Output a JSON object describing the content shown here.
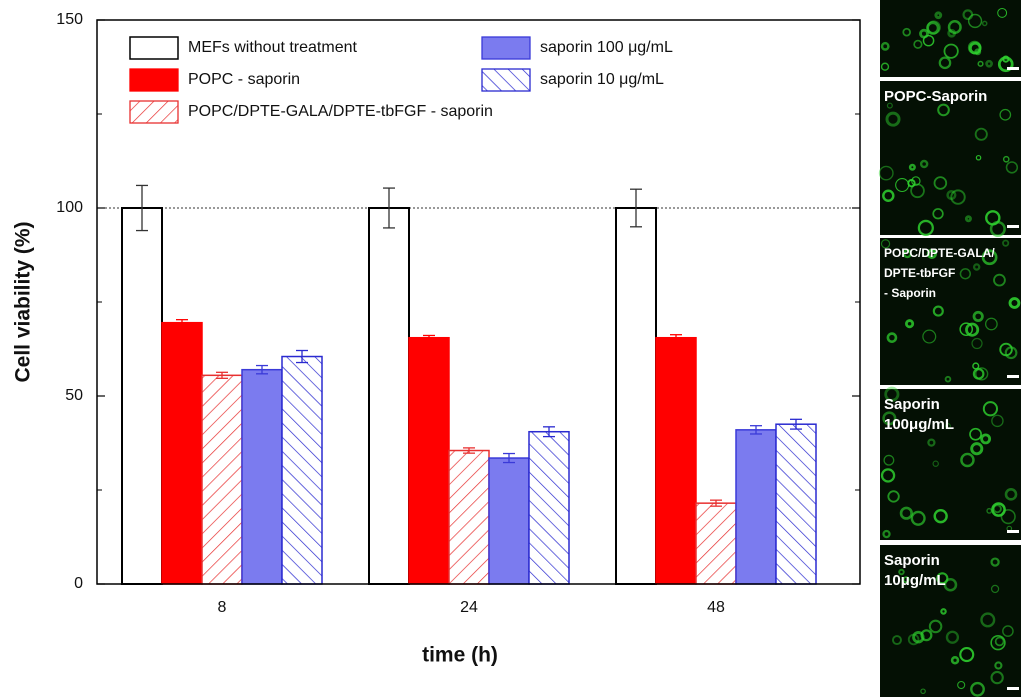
{
  "chart_data": {
    "type": "bar",
    "x_label": "time (h)",
    "y_label": "Cell viability (%)",
    "categories": [
      "8",
      "24",
      "48"
    ],
    "ylim": [
      0,
      150
    ],
    "yticks": [
      0,
      50,
      100,
      150
    ],
    "minor_yticks": [
      25,
      75,
      125
    ],
    "reference_line": 100,
    "series": [
      {
        "name": "MEFs without treatment",
        "color": "#000000",
        "fill": "none",
        "values": [
          100,
          100,
          100
        ],
        "errors": [
          6,
          5.3,
          5
        ]
      },
      {
        "name": "POPC - saporin",
        "color": "#ff0000",
        "fill": "solid",
        "values": [
          69.5,
          65.5,
          65.5
        ],
        "errors": [
          0.8,
          0.6,
          0.8
        ]
      },
      {
        "name": "POPC/DPTE-GALA/DPTE-tbFGF - saporin",
        "color": "#e83030",
        "fill": "hatch-forward",
        "values": [
          55.5,
          35.5,
          21.5
        ],
        "errors": [
          0.8,
          0.7,
          0.8
        ]
      },
      {
        "name": "saporin 100 μg/mL",
        "color": "#3a3ad8",
        "fill": "solid",
        "values": [
          57,
          33.5,
          41
        ],
        "errors": [
          1.1,
          1.2,
          1.1
        ]
      },
      {
        "name": "saporin 10 μg/mL",
        "color": "#2a2ad0",
        "fill": "hatch-back",
        "values": [
          60.5,
          40.5,
          42.5
        ],
        "errors": [
          1.6,
          1.3,
          1.3
        ]
      }
    ]
  },
  "panels": [
    {
      "label": []
    },
    {
      "label": [
        "POPC-Saporin"
      ]
    },
    {
      "label": [
        "POPC/DPTE-GALA/",
        "DPTE-tbFGF",
        "- Saporin"
      ]
    },
    {
      "label": [
        "Saporin",
        "100μg/mL"
      ]
    },
    {
      "label": [
        "Saporin",
        "10μg/mL"
      ]
    }
  ]
}
